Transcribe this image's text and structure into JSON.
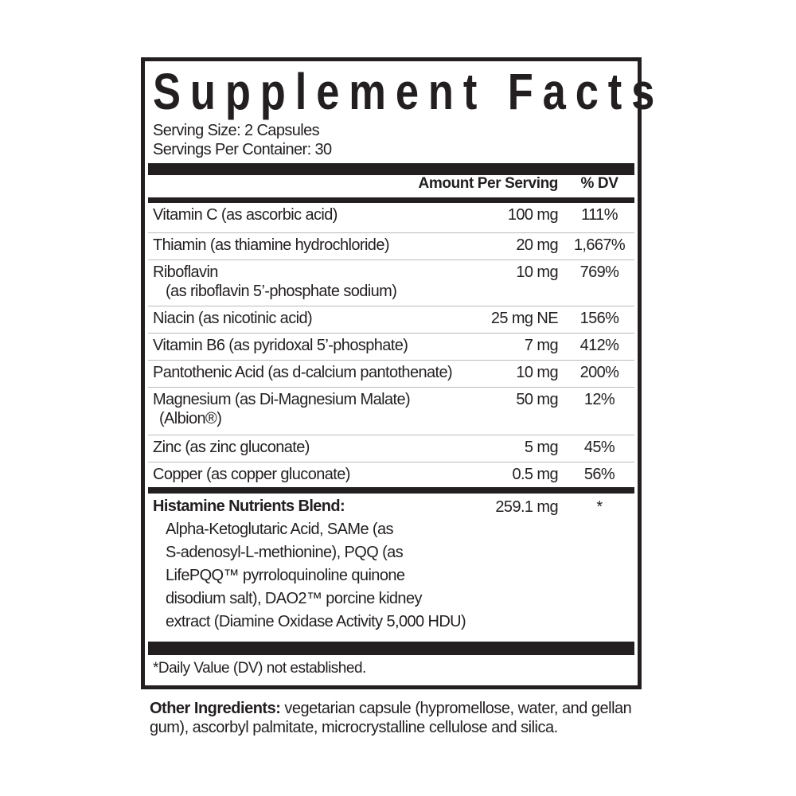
{
  "title": "Supplement Facts",
  "serving_size": "Serving Size: 2 Capsules",
  "servings_per_container": "Servings Per Container: 30",
  "header": {
    "amount": "Amount Per Serving",
    "dv": "% DV"
  },
  "rows": [
    {
      "name": "Vitamin C (as ascorbic acid)",
      "amount": "100 mg",
      "dv": "111%"
    },
    {
      "name": "Thiamin (as thiamine hydrochloride)",
      "amount": "20 mg",
      "dv": "1,667%"
    },
    {
      "name": "Riboflavin",
      "name2": "(as riboflavin 5’-phosphate sodium)",
      "amount": "10 mg",
      "dv": "769%"
    },
    {
      "name": "Niacin (as nicotinic acid)",
      "amount": "25 mg NE",
      "dv": "156%"
    },
    {
      "name": "Vitamin B6 (as pyridoxal 5’-phosphate)",
      "amount": "7 mg",
      "dv": "412%"
    },
    {
      "name": "Pantothenic Acid (as d-calcium pantothenate)",
      "amount": "10 mg",
      "dv": "200%"
    },
    {
      "name": "Magnesium (as Di-Magnesium Malate)",
      "name2": "(Albion®)",
      "amount": "50 mg",
      "dv": "12%"
    },
    {
      "name": "Zinc (as zinc gluconate)",
      "amount": "5 mg",
      "dv": "45%"
    },
    {
      "name": "Copper (as copper gluconate)",
      "amount": "0.5 mg",
      "dv": "56%"
    }
  ],
  "blend": {
    "name": "Histamine Nutrients Blend:",
    "amount": "259.1 mg",
    "dv": "*",
    "lines": [
      "Alpha-Ketoglutaric Acid, SAMe (as",
      "S-adenosyl-L-methionine), PQQ (as",
      "LifePQQ™ pyrroloquinoline quinone",
      "disodium salt), DAO2™ porcine kidney",
      "extract (Diamine Oxidase Activity 5,000 HDU)"
    ]
  },
  "footnote": "*Daily Value (DV) not established.",
  "other_ingredients": {
    "label": "Other Ingredients:",
    "text": " vegetarian capsule (hypromellose, water, and gellan gum), ascorbyl palmitate, microcrystalline cellulose and silica."
  }
}
